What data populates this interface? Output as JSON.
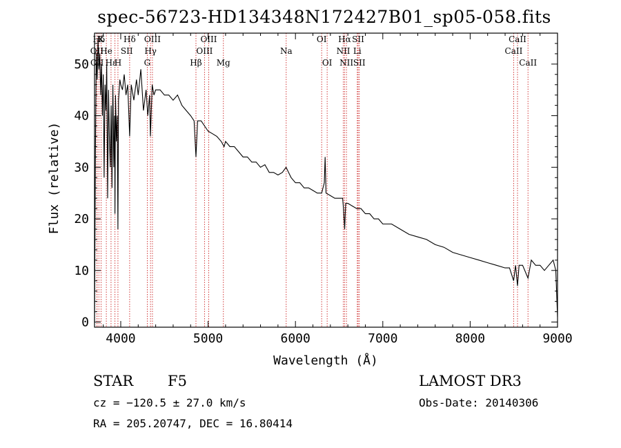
{
  "chart_data": {
    "type": "line",
    "title": "spec-56723-HD134348N172427B01_sp05-058.fits",
    "xlabel": "Wavelength (Å)",
    "ylabel": "Flux (relative)",
    "xlim": [
      3700,
      9000
    ],
    "ylim": [
      -1,
      56
    ],
    "xticks": [
      4000,
      5000,
      6000,
      7000,
      8000,
      9000
    ],
    "yticks": [
      0,
      10,
      20,
      30,
      40,
      50
    ],
    "grid": false,
    "series": [
      {
        "name": "spectrum",
        "x": [
          3700,
          3710,
          3720,
          3730,
          3740,
          3750,
          3760,
          3770,
          3780,
          3790,
          3800,
          3810,
          3820,
          3830,
          3840,
          3850,
          3860,
          3870,
          3880,
          3890,
          3900,
          3910,
          3920,
          3930,
          3934,
          3940,
          3950,
          3960,
          3968,
          3975,
          3990,
          4000,
          4020,
          4040,
          4060,
          4080,
          4102,
          4120,
          4150,
          4180,
          4200,
          4230,
          4260,
          4290,
          4310,
          4330,
          4340,
          4360,
          4380,
          4400,
          4450,
          4500,
          4550,
          4600,
          4650,
          4700,
          4750,
          4800,
          4840,
          4861,
          4880,
          4920,
          4960,
          5000,
          5050,
          5100,
          5150,
          5183,
          5200,
          5250,
          5300,
          5350,
          5400,
          5450,
          5500,
          5550,
          5600,
          5650,
          5700,
          5750,
          5800,
          5850,
          5893,
          5950,
          6000,
          6050,
          6100,
          6150,
          6200,
          6250,
          6300,
          6330,
          6340,
          6350,
          6400,
          6450,
          6500,
          6540,
          6550,
          6563,
          6575,
          6600,
          6650,
          6700,
          6750,
          6800,
          6850,
          6900,
          6950,
          7000,
          7100,
          7200,
          7300,
          7400,
          7500,
          7600,
          7700,
          7800,
          7900,
          8000,
          8100,
          8200,
          8300,
          8400,
          8450,
          8498,
          8520,
          8542,
          8560,
          8600,
          8662,
          8700,
          8750,
          8800,
          8850,
          8900,
          8950,
          8980,
          9000
        ],
        "values": [
          0,
          33,
          52,
          47,
          55,
          49,
          52,
          44,
          50,
          40,
          48,
          28,
          46,
          41,
          50,
          24,
          45,
          36,
          30,
          42,
          26,
          46,
          30,
          40,
          21,
          44,
          35,
          40,
          18,
          43,
          47,
          46,
          45,
          48,
          44,
          46,
          36,
          46,
          43,
          47,
          44,
          49,
          41,
          45,
          40,
          44,
          36,
          46,
          44,
          45,
          45,
          44,
          44,
          43,
          44,
          42,
          41,
          40,
          39,
          32,
          39,
          39,
          38,
          37,
          36.5,
          36,
          35,
          34,
          35,
          34,
          34,
          33,
          32,
          32,
          31,
          31,
          30,
          30.5,
          29,
          29,
          28.5,
          29,
          30,
          28,
          27,
          27,
          26,
          26,
          25.5,
          25,
          25,
          27,
          32,
          25,
          24.5,
          24,
          24,
          24,
          22,
          18,
          23,
          23,
          22.5,
          22,
          22,
          21,
          21,
          20,
          20,
          19,
          19,
          18,
          17,
          16.5,
          16,
          15,
          14.5,
          13.5,
          13,
          12.5,
          12,
          11.5,
          11,
          10.5,
          10.5,
          8,
          11,
          7,
          11,
          11,
          8.5,
          12,
          11,
          11,
          10,
          11,
          12,
          10,
          1
        ]
      }
    ],
    "annotations": [
      {
        "label": "Hδ",
        "wavelength": 3750,
        "row": 1
      },
      {
        "label": "K",
        "wavelength": 3775,
        "row": 1
      },
      {
        "label": "Hδ",
        "wavelength": 4102,
        "row": 1
      },
      {
        "label": "OII",
        "wavelength": 3727,
        "row": 2
      },
      {
        "label": "He",
        "wavelength": 3835,
        "row": 2
      },
      {
        "label": "SII",
        "wavelength": 4069,
        "row": 2
      },
      {
        "label": "OII",
        "wavelength": 3729,
        "row": 3
      },
      {
        "label": "Hε",
        "wavelength": 3889,
        "row": 3
      },
      {
        "label": "H",
        "wavelength": 3968,
        "row": 3
      },
      {
        "label": "OIII",
        "wavelength": 4363,
        "row": 1
      },
      {
        "label": "Hγ",
        "wavelength": 4341,
        "row": 2
      },
      {
        "label": "G",
        "wavelength": 4304,
        "row": 3
      },
      {
        "label": "OIII",
        "wavelength": 5007,
        "row": 1
      },
      {
        "label": "OIII",
        "wavelength": 4959,
        "row": 2
      },
      {
        "label": "Hβ",
        "wavelength": 4861,
        "row": 3
      },
      {
        "label": "Mg",
        "wavelength": 5175,
        "row": 3
      },
      {
        "label": "Na",
        "wavelength": 5894,
        "row": 2
      },
      {
        "label": "OI",
        "wavelength": 6300,
        "row": 1
      },
      {
        "label": "OI",
        "wavelength": 6363,
        "row": 3
      },
      {
        "label": "Hα",
        "wavelength": 6563,
        "row": 1
      },
      {
        "label": "SII",
        "wavelength": 6717,
        "row": 1
      },
      {
        "label": "NII",
        "wavelength": 6548,
        "row": 2
      },
      {
        "label": "Li",
        "wavelength": 6708,
        "row": 2
      },
      {
        "label": "NII",
        "wavelength": 6584,
        "row": 3
      },
      {
        "label": "SII",
        "wavelength": 6731,
        "row": 3
      },
      {
        "label": "CaII",
        "wavelength": 8542,
        "row": 1
      },
      {
        "label": "CaII",
        "wavelength": 8498,
        "row": 2
      },
      {
        "label": "CaII",
        "wavelength": 8662,
        "row": 3
      }
    ],
    "marker_lines": [
      3727,
      3729,
      3750,
      3775,
      3835,
      3889,
      3934,
      3968,
      4102,
      4304,
      4341,
      4363,
      4861,
      4959,
      5007,
      5175,
      5894,
      6300,
      6363,
      6548,
      6563,
      6584,
      6708,
      6717,
      6731,
      8498,
      8542,
      8662
    ]
  },
  "info": {
    "object_class": "STAR",
    "subclass": "F5",
    "survey": "LAMOST DR3",
    "cz": "cz = −120.5 ± 27.0 km/s",
    "obs_date": "Obs-Date: 20140306",
    "coords": "RA = 205.20747, DEC =  16.80414"
  },
  "colors": {
    "spectrum": "#000000",
    "marker_line": "#cc2222",
    "axis": "#000000",
    "background": "#ffffff"
  }
}
